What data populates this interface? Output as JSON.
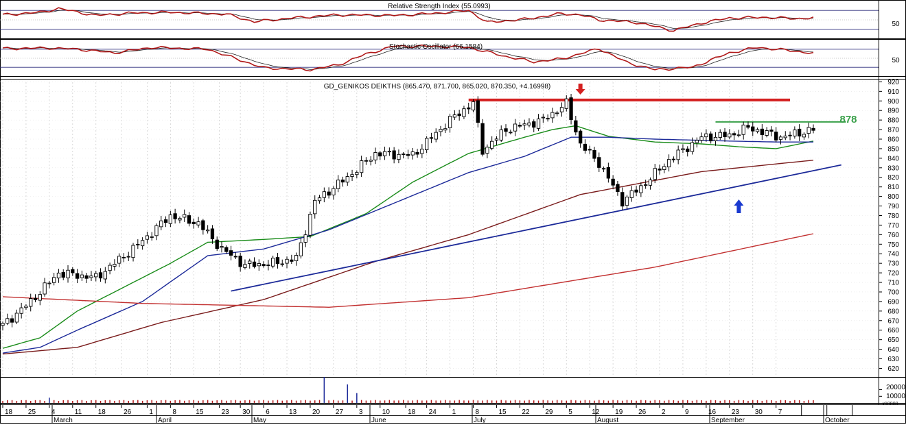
{
  "rsi_panel": {
    "title": "Relative Strength Index (55.0993)",
    "tick": "50"
  },
  "stoch_panel": {
    "title": "Stochastic Oscillator (66.1584)",
    "tick": "50"
  },
  "price_panel": {
    "title": "GD_GENIKOS DEIKTHS (865.470, 871.700, 865.020, 870.350, +4.16998)",
    "resistance_label": "878",
    "colors": {
      "candle_up": "#ffffff",
      "candle_down": "#000000",
      "ma_fast": "#1a8c1a",
      "ma_mid": "#1c2a99",
      "ma_slow": "#7a1c1c",
      "ma_long": "#c23030",
      "resistance": "#d42020",
      "support": "#1c2a99",
      "level_878": "#3aa04a",
      "arrow_down": "#d42020",
      "arrow_up": "#1a3ad0"
    }
  },
  "volume_panel": {
    "ticks": [
      "20000",
      "10000"
    ],
    "unit": "x10000"
  },
  "x_axis": {
    "days": [
      "18",
      "25",
      "4",
      "11",
      "18",
      "26",
      "1",
      "8",
      "15",
      "23",
      "30",
      "6",
      "13",
      "20",
      "27",
      "3",
      "10",
      "18",
      "24",
      "1",
      "8",
      "15",
      "22",
      "29",
      "5",
      "12",
      "19",
      "26",
      "2",
      "9",
      "16",
      "23",
      "30",
      "7"
    ],
    "months": [
      "March",
      "April",
      "May",
      "June",
      "July",
      "August",
      "September",
      "October"
    ]
  },
  "chart_data": {
    "type": "candlestick",
    "title": "GD_GENIKOS DEIKTHS (865.470, 871.700, 865.020, 870.350, +4.16998)",
    "y_axis": {
      "range": [
        611,
        921
      ],
      "ticks": [
        620,
        630,
        640,
        650,
        660,
        670,
        680,
        690,
        700,
        710,
        720,
        730,
        740,
        750,
        760,
        770,
        780,
        790,
        800,
        810,
        820,
        830,
        840,
        850,
        860,
        870,
        880,
        890,
        900,
        910,
        920
      ]
    },
    "series": [
      {
        "type": "ohlc",
        "anchors": [
          [
            0,
            665
          ],
          [
            6,
            690
          ],
          [
            12,
            720
          ],
          [
            20,
            715
          ],
          [
            28,
            745
          ],
          [
            36,
            780
          ],
          [
            42,
            772
          ],
          [
            47,
            745
          ],
          [
            52,
            728
          ],
          [
            58,
            730
          ],
          [
            63,
            735
          ],
          [
            67,
            795
          ],
          [
            74,
            820
          ],
          [
            80,
            845
          ],
          [
            88,
            843
          ],
          [
            96,
            880
          ],
          [
            101,
            898
          ],
          [
            103,
            848
          ],
          [
            108,
            870
          ],
          [
            116,
            880
          ],
          [
            121,
            897
          ],
          [
            124,
            855
          ],
          [
            128,
            835
          ],
          [
            133,
            795
          ],
          [
            137,
            810
          ],
          [
            143,
            838
          ],
          [
            150,
            862
          ],
          [
            156,
            864
          ],
          [
            160,
            872
          ],
          [
            167,
            862
          ],
          [
            174,
            870
          ]
        ]
      },
      {
        "type": "line",
        "anchors": [
          [
            0,
            641
          ],
          [
            8,
            652
          ],
          [
            16,
            680
          ],
          [
            26,
            705
          ],
          [
            36,
            730
          ],
          [
            44,
            752
          ],
          [
            56,
            755
          ],
          [
            66,
            758
          ],
          [
            78,
            782
          ],
          [
            88,
            815
          ],
          [
            100,
            845
          ],
          [
            112,
            862
          ],
          [
            118,
            870
          ],
          [
            123,
            874
          ],
          [
            130,
            863
          ],
          [
            140,
            857
          ],
          [
            150,
            855
          ],
          [
            158,
            852
          ],
          [
            166,
            850
          ],
          [
            174,
            858
          ]
        ]
      },
      {
        "type": "line",
        "anchors": [
          [
            0,
            636
          ],
          [
            8,
            642
          ],
          [
            16,
            660
          ],
          [
            30,
            690
          ],
          [
            44,
            738
          ],
          [
            56,
            745
          ],
          [
            70,
            765
          ],
          [
            86,
            797
          ],
          [
            100,
            825
          ],
          [
            112,
            842
          ],
          [
            122,
            862
          ],
          [
            130,
            862
          ],
          [
            140,
            860
          ],
          [
            156,
            858
          ],
          [
            166,
            857
          ],
          [
            174,
            857
          ]
        ]
      },
      {
        "type": "line",
        "anchors": [
          [
            0,
            635
          ],
          [
            16,
            642
          ],
          [
            34,
            668
          ],
          [
            56,
            692
          ],
          [
            80,
            732
          ],
          [
            100,
            760
          ],
          [
            124,
            802
          ],
          [
            150,
            826
          ],
          [
            174,
            838
          ]
        ]
      },
      {
        "type": "line",
        "anchors": [
          [
            0,
            695
          ],
          [
            30,
            688
          ],
          [
            70,
            684
          ],
          [
            100,
            694
          ],
          [
            140,
            726
          ],
          [
            174,
            761
          ]
        ]
      },
      {
        "type": "line",
        "name": "support",
        "anchors": [
          [
            49,
            701
          ],
          [
            180,
            833
          ]
        ]
      },
      {
        "type": "line",
        "name": "resistance",
        "anchors": [
          [
            100,
            901
          ],
          [
            169,
            901
          ]
        ]
      },
      {
        "type": "line",
        "name": "878",
        "anchors": [
          [
            153,
            878
          ],
          [
            181,
            878
          ]
        ]
      }
    ],
    "rsi": {
      "range": [
        0,
        100
      ],
      "value": 55.0993,
      "anchors": [
        [
          0,
          66
        ],
        [
          8,
          74
        ],
        [
          12,
          86
        ],
        [
          20,
          64
        ],
        [
          28,
          72
        ],
        [
          36,
          74
        ],
        [
          48,
          68
        ],
        [
          54,
          44
        ],
        [
          62,
          56
        ],
        [
          72,
          66
        ],
        [
          84,
          64
        ],
        [
          92,
          70
        ],
        [
          100,
          80
        ],
        [
          104,
          42
        ],
        [
          112,
          52
        ],
        [
          120,
          70
        ],
        [
          124,
          66
        ],
        [
          128,
          50
        ],
        [
          136,
          42
        ],
        [
          144,
          16
        ],
        [
          150,
          40
        ],
        [
          156,
          56
        ],
        [
          164,
          58
        ],
        [
          170,
          54
        ],
        [
          174,
          56
        ]
      ]
    },
    "stochastic": {
      "range": [
        0,
        100
      ],
      "value": 66.1584,
      "anchors": [
        [
          0,
          82
        ],
        [
          10,
          84
        ],
        [
          16,
          80
        ],
        [
          24,
          68
        ],
        [
          32,
          86
        ],
        [
          44,
          80
        ],
        [
          56,
          18
        ],
        [
          66,
          12
        ],
        [
          72,
          28
        ],
        [
          78,
          64
        ],
        [
          84,
          90
        ],
        [
          92,
          90
        ],
        [
          100,
          86
        ],
        [
          108,
          56
        ],
        [
          114,
          38
        ],
        [
          120,
          48
        ],
        [
          128,
          82
        ],
        [
          134,
          36
        ],
        [
          140,
          12
        ],
        [
          148,
          20
        ],
        [
          156,
          68
        ],
        [
          162,
          86
        ],
        [
          170,
          74
        ],
        [
          174,
          66
        ]
      ]
    },
    "volume": {
      "unit": "x10000",
      "baseline": 3000,
      "spikes": [
        [
          10,
          8000
        ],
        [
          69,
          39000
        ],
        [
          74,
          28000
        ],
        [
          76,
          15000
        ]
      ]
    }
  }
}
